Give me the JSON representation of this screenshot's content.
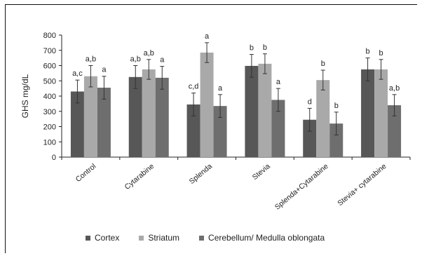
{
  "chart_data": {
    "type": "bar",
    "ylabel": "GHS mg/dL",
    "ylim": [
      0,
      800
    ],
    "yticks": [
      0,
      100,
      200,
      300,
      400,
      500,
      600,
      700,
      800
    ],
    "grid": false,
    "legend_position": "bottom",
    "categories": [
      "Control",
      "Cytarabine",
      "Splenda",
      "Stevia",
      "Splenda+Cytarabine",
      "Stevia+ cytarabine"
    ],
    "series": [
      {
        "name": "Cortex",
        "color": "#575757",
        "values": [
          430,
          525,
          345,
          598,
          245,
          575
        ],
        "errors": [
          75,
          75,
          75,
          75,
          75,
          75
        ],
        "labels": [
          "a,c",
          "a,b",
          "c,d",
          "b",
          "d",
          "b"
        ]
      },
      {
        "name": "Striatum",
        "color": "#a9a9a9",
        "values": [
          530,
          575,
          685,
          612,
          505,
          575
        ],
        "errors": [
          70,
          65,
          65,
          65,
          65,
          65
        ],
        "labels": [
          "a,b",
          "a,b",
          "a",
          "b",
          "b",
          "b"
        ]
      },
      {
        "name": "Cerebellum/ Medulla oblongata",
        "color": "#6e6e6e",
        "values": [
          455,
          520,
          335,
          375,
          220,
          340
        ],
        "errors": [
          75,
          75,
          75,
          75,
          75,
          70
        ],
        "labels": [
          "a",
          "a",
          "a",
          "a",
          "b",
          "a,b"
        ]
      }
    ]
  }
}
